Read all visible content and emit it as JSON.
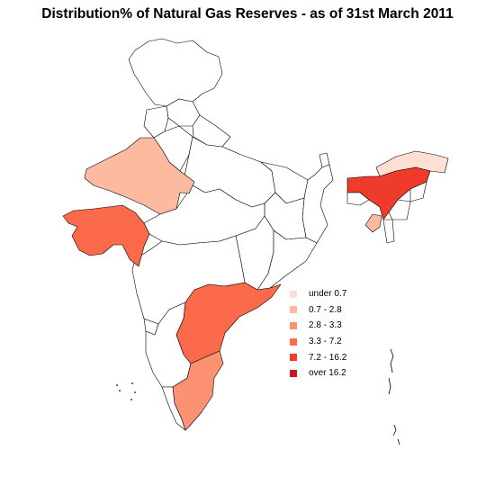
{
  "title": "Distribution% of Natural Gas Reserves - as of 31st March 2011",
  "legend": [
    {
      "label": "under 0.7",
      "color": "#fee0d2"
    },
    {
      "label": "0.7 - 2.8",
      "color": "#fcbba1"
    },
    {
      "label": "2.8 - 3.3",
      "color": "#fc9272"
    },
    {
      "label": "3.3 - 7.2",
      "color": "#fb6a4a"
    },
    {
      "label": "7.2 - 16.2",
      "color": "#ef3b2c"
    },
    {
      "label": "over 16.2",
      "color": "#cb181d"
    }
  ]
}
